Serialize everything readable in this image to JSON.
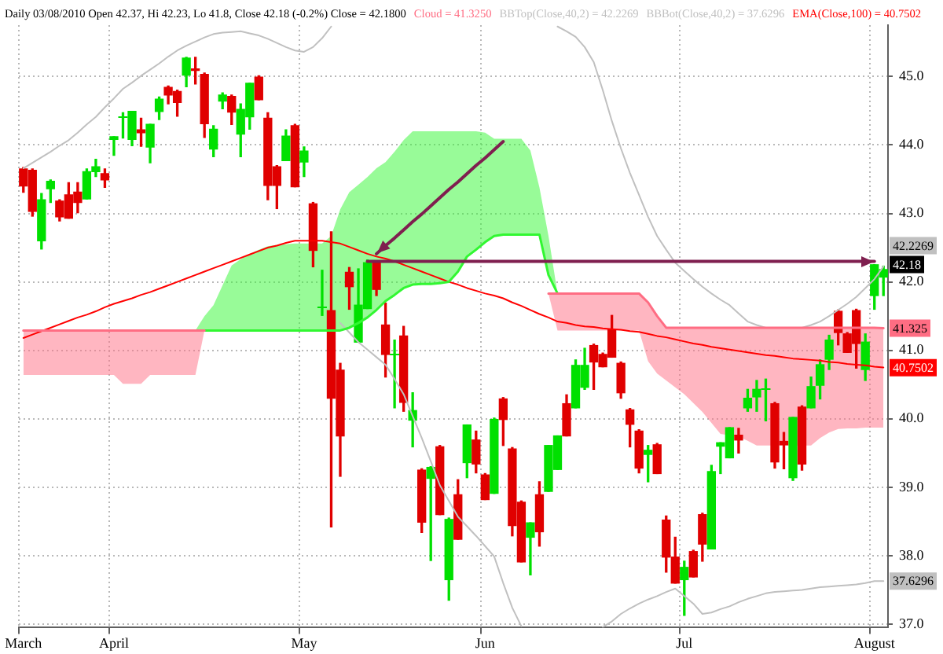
{
  "chart_data": {
    "type": "candlestick",
    "title": "Daily 03/08/2010 Open 42.37, Hi 42.23, Lo 41.8, Close 42.18 (-0.2%) Close = 42.1800",
    "categories": [
      "March",
      null,
      null,
      null,
      null,
      null,
      null,
      null,
      null,
      null,
      "April",
      null,
      null,
      null,
      null,
      null,
      null,
      null,
      null,
      null,
      null,
      null,
      null,
      null,
      null,
      null,
      null,
      null,
      null,
      null,
      null,
      "May",
      null,
      null,
      null,
      null,
      null,
      null,
      null,
      null,
      null,
      null,
      null,
      null,
      null,
      null,
      null,
      null,
      null,
      null,
      null,
      "Jun",
      null,
      null,
      null,
      null,
      null,
      null,
      null,
      null,
      null,
      null,
      null,
      null,
      null,
      null,
      null,
      null,
      null,
      null,
      null,
      null,
      null,
      "Jul",
      null,
      null,
      null,
      null,
      null,
      null,
      null,
      null,
      null,
      null,
      null,
      null,
      null,
      null,
      null,
      null,
      null,
      null,
      null,
      null,
      "August",
      null
    ],
    "ylim": [
      36.95,
      45.75
    ],
    "yticks": [
      {
        "value": 37,
        "label": "37.0"
      },
      {
        "value": 38,
        "label": "38.0"
      },
      {
        "value": 39,
        "label": "39.0"
      },
      {
        "value": 40,
        "label": "40.0"
      },
      {
        "value": 41,
        "label": "41.0"
      },
      {
        "value": 42,
        "label": "42.0"
      },
      {
        "value": 43,
        "label": "43.0"
      },
      {
        "value": 44,
        "label": "44.0"
      },
      {
        "value": 45,
        "label": "45.0"
      }
    ],
    "grid": true,
    "legend": "top right",
    "series": [
      {
        "color": "#000000",
        "ohlc": [
          [
            43.65,
            43.67,
            43.31,
            43.4
          ],
          [
            43.63,
            43.65,
            42.96,
            43.03
          ],
          [
            42.6,
            43.29,
            42.48,
            43.2
          ],
          [
            43.36,
            43.49,
            43.16,
            43.47
          ],
          [
            43.18,
            43.2,
            42.89,
            42.95
          ],
          [
            43.27,
            43.45,
            42.93,
            42.93
          ],
          [
            43.31,
            43.45,
            43.01,
            43.16
          ],
          [
            43.21,
            43.65,
            43.21,
            43.61
          ],
          [
            43.61,
            43.79,
            43.54,
            43.68
          ],
          [
            43.58,
            43.65,
            43.38,
            43.49
          ],
          [
            44.08,
            44.12,
            43.85,
            44.12
          ],
          [
            44.41,
            44.47,
            44.1,
            44.41
          ],
          [
            44.08,
            44.49,
            43.99,
            44.49
          ],
          [
            44.22,
            44.39,
            43.98,
            44.18
          ],
          [
            43.97,
            44.3,
            43.74,
            44.3
          ],
          [
            44.49,
            44.7,
            44.37,
            44.67
          ],
          [
            44.84,
            44.86,
            44.6,
            44.73
          ],
          [
            44.78,
            44.8,
            44.42,
            44.62
          ],
          [
            45.02,
            45.28,
            44.85,
            45.27
          ],
          [
            45.11,
            45.28,
            44.89,
            45.09
          ],
          [
            45.03,
            45.05,
            44.11,
            44.31
          ],
          [
            43.94,
            44.28,
            43.83,
            44.23
          ],
          [
            44.64,
            44.76,
            44.53,
            44.73
          ],
          [
            44.71,
            44.73,
            44.3,
            44.48
          ],
          [
            44.16,
            44.6,
            43.83,
            44.52
          ],
          [
            44.41,
            44.9,
            44.23,
            44.9
          ],
          [
            44.99,
            45.01,
            44.66,
            44.66
          ],
          [
            44.39,
            44.47,
            43.2,
            43.41
          ],
          [
            43.68,
            43.7,
            43.07,
            43.41
          ],
          [
            43.77,
            44.22,
            43.77,
            44.13
          ],
          [
            44.28,
            44.3,
            43.39,
            43.39
          ],
          [
            43.75,
            43.97,
            43.54,
            43.91
          ],
          [
            43.14,
            43.16,
            42.22,
            42.46
          ],
          [
            41.64,
            42.17,
            41.51,
            41.64
          ],
          [
            41.58,
            42.73,
            38.42,
            40.3
          ],
          [
            40.71,
            40.81,
            39.16,
            39.75
          ],
          [
            42.14,
            42.21,
            41.6,
            41.93
          ],
          [
            41.12,
            42.19,
            41.12,
            41.66
          ],
          [
            41.61,
            42.32,
            41.61,
            42.28
          ],
          [
            42.3,
            42.3,
            41.8,
            41.89
          ],
          [
            41.37,
            41.69,
            40.61,
            40.94
          ],
          [
            40.96,
            41.15,
            40.16,
            40.96
          ],
          [
            41.21,
            41.35,
            40.11,
            40.24
          ],
          [
            39.98,
            40.38,
            39.59,
            40.12
          ],
          [
            39.25,
            39.27,
            38.34,
            38.49
          ],
          [
            39.13,
            39.3,
            37.93,
            39.29
          ],
          [
            39.59,
            39.61,
            38.6,
            38.6
          ],
          [
            37.65,
            38.55,
            37.35,
            38.53
          ],
          [
            38.89,
            39.11,
            38.24,
            38.24
          ],
          [
            39.36,
            39.91,
            39.14,
            39.91
          ],
          [
            39.69,
            39.82,
            39.21,
            39.34
          ],
          [
            39.18,
            39.2,
            38.82,
            38.82
          ],
          [
            38.91,
            40.01,
            38.91,
            39.99
          ],
          [
            40.29,
            40.31,
            39.61,
            39.99
          ],
          [
            39.56,
            39.58,
            38.29,
            38.44
          ],
          [
            38.78,
            38.8,
            37.91,
            37.91
          ],
          [
            38.27,
            38.48,
            37.72,
            38.48
          ],
          [
            38.89,
            39.08,
            38.14,
            38.35
          ],
          [
            38.94,
            39.61,
            38.94,
            39.61
          ],
          [
            39.26,
            39.75,
            39.26,
            39.75
          ],
          [
            40.22,
            40.35,
            39.75,
            39.75
          ],
          [
            40.16,
            40.86,
            40.16,
            40.78
          ],
          [
            40.46,
            41.03,
            40.43,
            40.78
          ],
          [
            41.07,
            41.09,
            40.43,
            40.83
          ],
          [
            40.94,
            40.96,
            40.76,
            40.76
          ],
          [
            41.3,
            41.51,
            40.9,
            40.9
          ],
          [
            40.81,
            40.83,
            40.3,
            40.38
          ],
          [
            40.13,
            40.15,
            39.59,
            39.92
          ],
          [
            39.82,
            39.84,
            39.21,
            39.28
          ],
          [
            39.48,
            39.61,
            39.08,
            39.54
          ],
          [
            39.62,
            39.64,
            39.2,
            39.2
          ],
          [
            38.52,
            38.58,
            37.76,
            37.98
          ],
          [
            37.98,
            38.27,
            37.6,
            37.6
          ],
          [
            37.65,
            37.92,
            37.13,
            37.83
          ],
          [
            38.06,
            38.08,
            37.69,
            37.69
          ],
          [
            38.6,
            38.62,
            37.92,
            38.17
          ],
          [
            38.1,
            39.32,
            38.1,
            39.23
          ],
          [
            39.6,
            39.65,
            39.2,
            39.65
          ],
          [
            39.43,
            39.87,
            39.43,
            39.87
          ],
          [
            39.76,
            39.86,
            39.5,
            39.69
          ],
          [
            40.16,
            40.43,
            40.11,
            40.3
          ],
          [
            40.32,
            40.56,
            40.11,
            40.43
          ],
          [
            40.45,
            40.58,
            39.97,
            40.45
          ],
          [
            40.22,
            40.24,
            39.28,
            39.37
          ],
          [
            39.67,
            39.8,
            39.27,
            39.62
          ],
          [
            39.14,
            40.02,
            39.1,
            40.02
          ],
          [
            40.17,
            40.19,
            39.25,
            39.34
          ],
          [
            40.16,
            40.61,
            40.16,
            40.47
          ],
          [
            40.49,
            40.86,
            40.29,
            40.79
          ],
          [
            40.87,
            41.22,
            40.72,
            41.15
          ],
          [
            41.57,
            41.59,
            41.08,
            41.26
          ],
          [
            41.24,
            41.26,
            40.97,
            40.97
          ],
          [
            41.58,
            41.6,
            40.74,
            41.1
          ],
          [
            40.72,
            41.24,
            40.56,
            41.12
          ],
          [
            41.8,
            42.25,
            41.6,
            42.25
          ],
          [
            42.07,
            42.23,
            41.8,
            42.18
          ]
        ],
        "colors": [
          "#e00000",
          "#e00000",
          "#00e000",
          "#00e000",
          "#e00000",
          "#e00000",
          "#e00000",
          "#00e000",
          "#00e000",
          "#e00000",
          "#00e000",
          "#00e000",
          "#00e000",
          "#e00000",
          "#00e000",
          "#00e000",
          "#e00000",
          "#e00000",
          "#00e000",
          "#e00000",
          "#e00000",
          "#00e000",
          "#00e000",
          "#e00000",
          "#00e000",
          "#00e000",
          "#e00000",
          "#e00000",
          "#e00000",
          "#00e000",
          "#e00000",
          "#00e000",
          "#e00000",
          "#00e000",
          "#e00000",
          "#e00000",
          "#e00000",
          "#00e000",
          "#00e000",
          "#e00000",
          "#e00000",
          "#00e000",
          "#e00000",
          "#00e000",
          "#e00000",
          "#00e000",
          "#e00000",
          "#00e000",
          "#e00000",
          "#00e000",
          "#e00000",
          "#e00000",
          "#00e000",
          "#e00000",
          "#e00000",
          "#e00000",
          "#00e000",
          "#e00000",
          "#00e000",
          "#00e000",
          "#e00000",
          "#00e000",
          "#00e000",
          "#e00000",
          "#e00000",
          "#e00000",
          "#e00000",
          "#e00000",
          "#e00000",
          "#00e000",
          "#e00000",
          "#e00000",
          "#e00000",
          "#00e000",
          "#e00000",
          "#e00000",
          "#00e000",
          "#00e000",
          "#00e000",
          "#e00000",
          "#00e000",
          "#00e000",
          "#00e000",
          "#e00000",
          "#e00000",
          "#00e000",
          "#e00000",
          "#00e000",
          "#00e000",
          "#00e000",
          "#e00000",
          "#e00000",
          "#e00000",
          "#00e000",
          "#00e000",
          "#00e000"
        ],
        "value_labels": [
          null,
          null,
          null,
          null,
          null,
          null,
          null,
          null,
          null,
          null,
          null,
          null,
          null,
          null,
          null,
          null,
          null,
          null,
          null,
          null,
          null,
          null,
          null,
          null,
          null,
          null,
          null,
          null,
          null,
          null,
          null,
          null,
          null,
          null,
          null,
          null,
          null,
          null,
          null,
          null,
          null,
          null,
          null,
          null,
          null,
          null,
          null,
          null,
          null,
          null,
          null,
          null,
          null,
          null,
          null,
          null,
          null,
          null,
          null,
          null,
          null,
          null,
          null,
          null,
          null,
          null,
          null,
          null,
          null,
          null,
          null,
          null,
          null,
          null,
          null,
          null,
          null,
          null,
          null,
          null,
          null,
          null,
          null,
          null,
          null,
          null,
          null,
          null,
          null,
          null,
          null,
          null,
          null,
          null,
          null,
          "42.18"
        ]
      },
      {
        "name": "Cloud = 41.3250",
        "type": "line",
        "color": "#ff6d83",
        "values": [
          41.29,
          41.29,
          41.29,
          41.29,
          41.29,
          41.29,
          41.29,
          41.29,
          41.29,
          41.29,
          41.29,
          41.29,
          41.29,
          41.29,
          41.29,
          41.29,
          41.29,
          41.29,
          41.29,
          41.29,
          41.29,
          null,
          null,
          null,
          null,
          null,
          null,
          null,
          null,
          null,
          null,
          null,
          null,
          null,
          null,
          null,
          null,
          null,
          null,
          null,
          null,
          null,
          null,
          null,
          null,
          null,
          null,
          null,
          null,
          null,
          null,
          null,
          null,
          null,
          null,
          null,
          null,
          null,
          41.83,
          41.83,
          41.83,
          41.83,
          41.83,
          41.83,
          41.83,
          41.83,
          41.83,
          41.83,
          41.83,
          41.7,
          41.5,
          41.33,
          41.33,
          41.33,
          41.33,
          41.33,
          41.33,
          41.33,
          41.33,
          41.33,
          41.33,
          41.33,
          41.33,
          41.33,
          41.33,
          41.33,
          41.33,
          41.33,
          41.33,
          41.33,
          41.33,
          41.33,
          41.33,
          41.33,
          41.33,
          41.325
        ],
        "upper": [
          41.29,
          41.29,
          41.29,
          41.29,
          41.29,
          41.29,
          41.29,
          41.29,
          41.29,
          41.29,
          41.29,
          41.29,
          41.29,
          41.29,
          41.29,
          41.29,
          41.29,
          41.29,
          41.29,
          41.29,
          41.29,
          null,
          null,
          null,
          null,
          null,
          null,
          null,
          null,
          null,
          null,
          null,
          null,
          null,
          null,
          null,
          null,
          null,
          null,
          null,
          null,
          null,
          null,
          null,
          null,
          null,
          null,
          null,
          null,
          null,
          null,
          null,
          null,
          null,
          null,
          null,
          null,
          null,
          41.83,
          41.83,
          41.83,
          41.83,
          41.83,
          41.83,
          41.83,
          41.83,
          41.83,
          41.83,
          41.83,
          41.7,
          41.5,
          41.33,
          41.33,
          41.33,
          41.33,
          41.33,
          41.33,
          41.33,
          41.33,
          41.33,
          41.33,
          41.33,
          41.33,
          41.33,
          41.33,
          41.33,
          41.33,
          41.33,
          41.33,
          41.33,
          41.33,
          41.33,
          41.33,
          41.33,
          41.33,
          41.325
        ],
        "lower": [
          40.64,
          40.64,
          40.64,
          40.64,
          40.64,
          40.64,
          40.64,
          40.64,
          40.64,
          40.64,
          40.64,
          40.51,
          40.51,
          40.51,
          40.64,
          40.64,
          40.64,
          40.64,
          40.64,
          40.64,
          41.29,
          null,
          null,
          null,
          null,
          null,
          null,
          null,
          null,
          null,
          null,
          null,
          null,
          null,
          null,
          null,
          null,
          null,
          null,
          null,
          null,
          null,
          null,
          null,
          null,
          null,
          null,
          null,
          null,
          null,
          null,
          null,
          null,
          null,
          null,
          null,
          null,
          null,
          41.83,
          41.29,
          41.29,
          41.29,
          41.29,
          41.29,
          41.29,
          41.29,
          41.29,
          41.29,
          41.29,
          40.84,
          40.66,
          40.56,
          40.46,
          40.36,
          40.23,
          40.1,
          39.94,
          39.78,
          39.76,
          39.74,
          39.68,
          39.61,
          39.61,
          39.61,
          39.61,
          39.61,
          39.61,
          39.61,
          39.72,
          39.8,
          39.85,
          39.86,
          39.86,
          39.87,
          39.87,
          39.87
        ],
        "value_labels": [
          null,
          null,
          null,
          null,
          null,
          null,
          null,
          null,
          null,
          null,
          null,
          null,
          null,
          null,
          null,
          null,
          null,
          null,
          null,
          null,
          null,
          null,
          null,
          null,
          null,
          null,
          null,
          null,
          null,
          null,
          null,
          null,
          null,
          null,
          null,
          null,
          null,
          null,
          null,
          null,
          null,
          null,
          null,
          null,
          null,
          null,
          null,
          null,
          null,
          null,
          null,
          null,
          null,
          null,
          null,
          null,
          null,
          null,
          null,
          null,
          null,
          null,
          null,
          null,
          null,
          null,
          null,
          null,
          null,
          null,
          null,
          null,
          null,
          null,
          null,
          null,
          null,
          null,
          null,
          null,
          null,
          null,
          null,
          null,
          null,
          null,
          null,
          null,
          null,
          null,
          null,
          null,
          null,
          null,
          null,
          "41.325"
        ]
      },
      {
        "type": "line",
        "color": "#31f731",
        "values": [
          null,
          null,
          null,
          null,
          null,
          null,
          null,
          null,
          null,
          null,
          null,
          null,
          null,
          null,
          null,
          null,
          null,
          null,
          null,
          41.29,
          41.29,
          41.29,
          41.29,
          41.29,
          41.29,
          41.29,
          41.29,
          41.29,
          41.29,
          41.29,
          41.29,
          41.29,
          41.29,
          41.29,
          41.29,
          41.29,
          41.33,
          41.4,
          41.48,
          41.59,
          41.72,
          41.81,
          41.91,
          41.96,
          41.97,
          41.97,
          41.98,
          42.0,
          42.15,
          42.37,
          42.47,
          42.58,
          42.67,
          42.69,
          42.69,
          42.69,
          42.69,
          42.69,
          42.1,
          41.83,
          null,
          null,
          null,
          null,
          null,
          null,
          null,
          null,
          null,
          null,
          null,
          null,
          null,
          null,
          null,
          null,
          null,
          null,
          null,
          null,
          null,
          null,
          null,
          null,
          null,
          null,
          null,
          null,
          null,
          null,
          null,
          null,
          null,
          null,
          null,
          null
        ],
        "upper": [
          null,
          null,
          null,
          null,
          null,
          null,
          null,
          null,
          null,
          null,
          null,
          null,
          null,
          null,
          null,
          null,
          null,
          null,
          null,
          41.29,
          41.5,
          41.66,
          41.95,
          42.24,
          42.33,
          42.41,
          42.47,
          42.52,
          42.54,
          42.55,
          42.56,
          42.56,
          42.56,
          42.56,
          42.67,
          43.06,
          43.31,
          43.42,
          43.53,
          43.66,
          43.75,
          43.9,
          44.07,
          44.2,
          44.2,
          44.2,
          44.2,
          44.2,
          44.2,
          44.2,
          44.2,
          44.18,
          44.09,
          44.09,
          44.09,
          44.09,
          43.92,
          43.38,
          42.67,
          41.83,
          null,
          null,
          null,
          null,
          null,
          null,
          null,
          null,
          null,
          null,
          null,
          null,
          null,
          null,
          null,
          null,
          null,
          null,
          null,
          null,
          null,
          null,
          null,
          null,
          null,
          null,
          null,
          null,
          null,
          null,
          null,
          null,
          null,
          null,
          null,
          null
        ],
        "lower": [
          null,
          null,
          null,
          null,
          null,
          null,
          null,
          null,
          null,
          null,
          null,
          null,
          null,
          null,
          null,
          null,
          null,
          null,
          null,
          41.29,
          41.29,
          41.29,
          41.29,
          41.29,
          41.29,
          41.29,
          41.29,
          41.29,
          41.29,
          41.29,
          41.29,
          41.29,
          41.29,
          41.29,
          41.29,
          41.29,
          41.33,
          41.4,
          41.48,
          41.59,
          41.72,
          41.81,
          41.91,
          41.96,
          41.97,
          41.97,
          41.98,
          42.0,
          42.15,
          42.37,
          42.47,
          42.58,
          42.67,
          42.69,
          42.69,
          42.69,
          42.69,
          42.69,
          42.1,
          41.83,
          null,
          null,
          null,
          null,
          null,
          null,
          null,
          null,
          null,
          null,
          null,
          null,
          null,
          null,
          null,
          null,
          null,
          null,
          null,
          null,
          null,
          null,
          null,
          null,
          null,
          null,
          null,
          null,
          null,
          null,
          null,
          null,
          null,
          null,
          null,
          null
        ]
      },
      {
        "name": "BBTop(Close,40,2) = 42.2269",
        "type": "line",
        "color": "#c0c0c0",
        "values": [
          43.66,
          43.74,
          43.82,
          43.9,
          43.99,
          44.07,
          44.18,
          44.3,
          44.41,
          44.55,
          44.68,
          44.82,
          44.91,
          45.01,
          45.1,
          45.19,
          45.29,
          45.38,
          45.45,
          45.51,
          45.57,
          45.62,
          45.64,
          45.65,
          45.66,
          45.63,
          45.6,
          45.55,
          45.49,
          45.43,
          45.38,
          45.36,
          45.43,
          45.56,
          45.73,
          null,
          null,
          null,
          null,
          null,
          null,
          null,
          null,
          null,
          null,
          null,
          null,
          null,
          null,
          null,
          null,
          null,
          null,
          null,
          null,
          null,
          null,
          null,
          null,
          45.73,
          45.66,
          45.58,
          45.43,
          45.21,
          44.8,
          44.35,
          43.95,
          43.59,
          43.27,
          42.95,
          42.67,
          42.47,
          42.28,
          42.16,
          42.04,
          41.93,
          41.83,
          41.74,
          41.66,
          41.54,
          41.42,
          41.37,
          41.33,
          41.33,
          41.33,
          41.33,
          41.33,
          41.37,
          41.42,
          41.5,
          41.59,
          41.68,
          41.78,
          41.91,
          42.04,
          42.2269
        ],
        "value_labels": [
          null,
          null,
          null,
          null,
          null,
          null,
          null,
          null,
          null,
          null,
          null,
          null,
          null,
          null,
          null,
          null,
          null,
          null,
          null,
          null,
          null,
          null,
          null,
          null,
          null,
          null,
          null,
          null,
          null,
          null,
          null,
          null,
          null,
          null,
          null,
          null,
          null,
          null,
          null,
          null,
          null,
          null,
          null,
          null,
          null,
          null,
          null,
          null,
          null,
          null,
          null,
          null,
          null,
          null,
          null,
          null,
          null,
          null,
          null,
          null,
          null,
          null,
          null,
          null,
          null,
          null,
          null,
          null,
          null,
          null,
          null,
          null,
          null,
          null,
          null,
          null,
          null,
          null,
          null,
          null,
          null,
          null,
          null,
          null,
          null,
          null,
          null,
          null,
          null,
          null,
          null,
          null,
          null,
          null,
          null,
          "42.2269"
        ]
      },
      {
        "name": "BBBot(Close,40,2) = 37.6296",
        "type": "line",
        "color": "#c0c0c0",
        "values": [
          null,
          null,
          null,
          null,
          null,
          null,
          null,
          null,
          null,
          null,
          null,
          null,
          null,
          null,
          null,
          null,
          null,
          null,
          null,
          null,
          null,
          null,
          null,
          null,
          null,
          null,
          null,
          null,
          null,
          null,
          null,
          null,
          null,
          null,
          null,
          41.4,
          41.26,
          41.12,
          41.01,
          40.9,
          40.79,
          40.58,
          40.36,
          40.04,
          39.72,
          39.38,
          39.03,
          38.8,
          38.57,
          38.43,
          38.29,
          38.14,
          37.99,
          37.6,
          37.24,
          36.97,
          null,
          null,
          null,
          null,
          null,
          null,
          null,
          null,
          36.96,
          37.04,
          37.15,
          37.23,
          37.3,
          37.36,
          37.41,
          37.47,
          37.52,
          37.41,
          37.3,
          37.15,
          37.17,
          37.22,
          37.26,
          37.32,
          37.37,
          37.41,
          37.45,
          37.47,
          37.48,
          37.49,
          37.5,
          37.52,
          37.54,
          37.55,
          37.56,
          37.57,
          37.58,
          37.6,
          37.63,
          37.6296
        ],
        "value_labels": [
          null,
          null,
          null,
          null,
          null,
          null,
          null,
          null,
          null,
          null,
          null,
          null,
          null,
          null,
          null,
          null,
          null,
          null,
          null,
          null,
          null,
          null,
          null,
          null,
          null,
          null,
          null,
          null,
          null,
          null,
          null,
          null,
          null,
          null,
          null,
          null,
          null,
          null,
          null,
          null,
          null,
          null,
          null,
          null,
          null,
          null,
          null,
          null,
          null,
          null,
          null,
          null,
          null,
          null,
          null,
          null,
          null,
          null,
          null,
          null,
          null,
          null,
          null,
          null,
          null,
          null,
          null,
          null,
          null,
          null,
          null,
          null,
          null,
          null,
          null,
          null,
          null,
          null,
          null,
          null,
          null,
          null,
          null,
          null,
          null,
          null,
          null,
          null,
          null,
          null,
          null,
          null,
          null,
          null,
          null,
          "37.6296"
        ]
      },
      {
        "name": "EMA(Close,100) = 40.7502",
        "type": "line",
        "color": "#ff0000",
        "values": [
          41.18,
          41.23,
          41.28,
          41.33,
          41.38,
          41.43,
          41.48,
          41.52,
          41.57,
          41.63,
          41.68,
          41.72,
          41.76,
          41.81,
          41.85,
          41.9,
          41.95,
          42.0,
          42.05,
          42.1,
          42.15,
          42.2,
          42.25,
          42.3,
          42.35,
          42.4,
          42.45,
          42.5,
          42.53,
          42.57,
          42.6,
          42.6,
          42.6,
          42.6,
          42.58,
          42.56,
          42.51,
          42.46,
          42.41,
          42.37,
          42.34,
          42.3,
          42.25,
          42.2,
          42.15,
          42.1,
          42.05,
          42.0,
          41.96,
          41.91,
          41.87,
          41.83,
          41.8,
          41.76,
          41.7,
          41.65,
          41.59,
          41.53,
          41.48,
          41.42,
          41.4,
          41.37,
          41.35,
          41.34,
          41.32,
          41.31,
          41.3,
          41.28,
          41.27,
          41.24,
          41.21,
          41.19,
          41.16,
          41.13,
          41.1,
          41.08,
          41.05,
          41.03,
          41.01,
          40.99,
          40.97,
          40.95,
          40.93,
          40.92,
          40.9,
          40.88,
          40.87,
          40.86,
          40.85,
          40.83,
          40.82,
          40.8,
          40.79,
          40.78,
          40.76,
          40.7502
        ],
        "value_labels": [
          null,
          null,
          null,
          null,
          null,
          null,
          null,
          null,
          null,
          null,
          null,
          null,
          null,
          null,
          null,
          null,
          null,
          null,
          null,
          null,
          null,
          null,
          null,
          null,
          null,
          null,
          null,
          null,
          null,
          null,
          null,
          null,
          null,
          null,
          null,
          null,
          null,
          null,
          null,
          null,
          null,
          null,
          null,
          null,
          null,
          null,
          null,
          null,
          null,
          null,
          null,
          null,
          null,
          null,
          null,
          null,
          null,
          null,
          null,
          null,
          null,
          null,
          null,
          null,
          null,
          null,
          null,
          null,
          null,
          null,
          null,
          null,
          null,
          null,
          null,
          null,
          null,
          null,
          null,
          null,
          null,
          null,
          null,
          null,
          null,
          null,
          null,
          null,
          null,
          null,
          null,
          null,
          null,
          null,
          null,
          "40.7502"
        ]
      },
      {
        "type": "line",
        "color": "#7f1f4f",
        "values": [
          null,
          null,
          null,
          null,
          null,
          null,
          null,
          null,
          null,
          null,
          null,
          null,
          null,
          null,
          null,
          null,
          null,
          null,
          null,
          null,
          null,
          null,
          null,
          null,
          null,
          null,
          null,
          null,
          null,
          null,
          null,
          null,
          null,
          null,
          null,
          null,
          null,
          null,
          42.3,
          42.3,
          42.3,
          42.3,
          42.3,
          42.3,
          42.3,
          42.3,
          42.3,
          42.3,
          42.3,
          42.3,
          42.3,
          42.3,
          42.3,
          42.3,
          42.3,
          42.3,
          42.3,
          42.3,
          42.3,
          42.3,
          42.3,
          42.3,
          42.3,
          42.3,
          42.3,
          42.3,
          42.3,
          42.3,
          42.3,
          42.3,
          42.3,
          42.3,
          42.3,
          42.3,
          42.3,
          42.3,
          42.3,
          42.3,
          42.3,
          42.3,
          42.3,
          42.3,
          42.3,
          42.3,
          42.3,
          42.3,
          42.3,
          42.3,
          42.3,
          42.3,
          42.3,
          42.3,
          42.3,
          42.3,
          42.3,
          null
        ]
      },
      {
        "type": "line",
        "color": "#7f1f4f",
        "values": [
          null,
          null,
          null,
          null,
          null,
          null,
          null,
          null,
          null,
          null,
          null,
          null,
          null,
          null,
          null,
          null,
          null,
          null,
          null,
          null,
          null,
          null,
          null,
          null,
          null,
          null,
          null,
          null,
          null,
          null,
          null,
          null,
          null,
          null,
          null,
          null,
          null,
          null,
          null,
          42.41,
          42.53,
          42.64,
          42.76,
          42.88,
          42.99,
          43.11,
          43.23,
          43.35,
          43.46,
          43.58,
          43.7,
          43.81,
          43.93,
          44.05,
          null,
          null,
          null,
          null,
          null,
          null,
          null,
          null,
          null,
          null,
          null,
          null,
          null,
          null,
          null,
          null,
          null,
          null,
          null,
          null,
          null,
          null,
          null,
          null,
          null,
          null,
          null,
          null,
          null,
          null,
          null,
          null,
          null,
          null,
          null,
          null,
          null,
          null,
          null,
          null,
          null,
          null
        ]
      }
    ]
  }
}
